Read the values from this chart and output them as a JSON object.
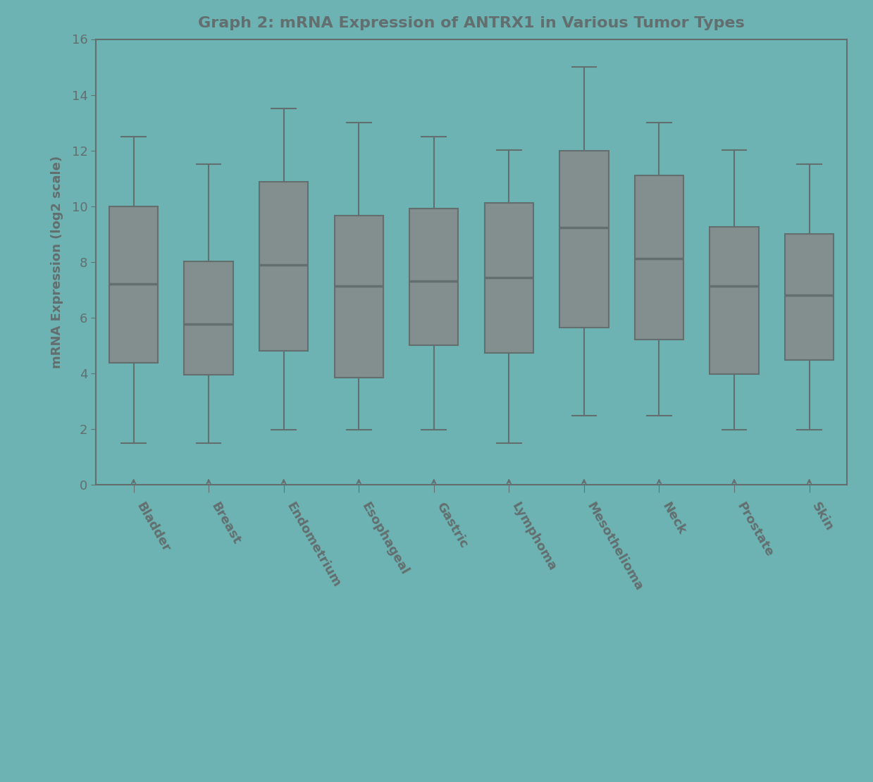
{
  "title": "Graph 2: mRNA Expression of ANTRX1 in Various Tumor Types",
  "ylabel": "mRNA Expression (log2 scale)",
  "background_color": "#6db3b3",
  "plot_bg_color": "#6db3b3",
  "box_facecolor": "#838f8f",
  "box_edgecolor": "#636f6f",
  "median_color": "#636f6f",
  "whisker_color": "#636f6f",
  "cap_color": "#636f6f",
  "flier_color": "#636f6f",
  "axis_color": "#636f6f",
  "categories": [
    "Bladder",
    "Breast",
    "Endometrium",
    "Esophageal",
    "Gastric",
    "Lymphoma",
    "Mesothelioma",
    "Neck",
    "Prostate",
    "Skin"
  ],
  "box_stats": {
    "Bladder": {
      "q1": 4.5,
      "median": 6.5,
      "q3": 9.5,
      "wl": 1.5,
      "wh": 12.5
    },
    "Breast": {
      "q1": 4.0,
      "median": 6.0,
      "q3": 8.5,
      "wl": 1.5,
      "wh": 11.5
    },
    "Endometrium": {
      "q1": 5.0,
      "median": 8.0,
      "q3": 11.5,
      "wl": 2.0,
      "wh": 13.5
    },
    "Esophageal": {
      "q1": 4.5,
      "median": 7.5,
      "q3": 10.5,
      "wl": 2.0,
      "wh": 13.0
    },
    "Gastric": {
      "q1": 4.5,
      "median": 7.0,
      "q3": 10.0,
      "wl": 2.0,
      "wh": 12.5
    },
    "Lymphoma": {
      "q1": 4.0,
      "median": 6.5,
      "q3": 10.0,
      "wl": 1.5,
      "wh": 12.0
    },
    "Mesothelioma": {
      "q1": 5.5,
      "median": 8.5,
      "q3": 12.5,
      "wl": 2.5,
      "wh": 15.0
    },
    "Neck": {
      "q1": 5.0,
      "median": 7.5,
      "q3": 11.0,
      "wl": 2.5,
      "wh": 13.0
    },
    "Prostate": {
      "q1": 4.5,
      "median": 6.5,
      "q3": 9.5,
      "wl": 2.0,
      "wh": 12.0
    },
    "Skin": {
      "q1": 4.5,
      "median": 7.0,
      "q3": 9.5,
      "wl": 2.0,
      "wh": 11.5
    }
  },
  "ylim": [
    0,
    16
  ],
  "yticks": [
    0,
    2,
    4,
    6,
    8,
    10,
    12,
    14,
    16
  ],
  "box_width": 0.65,
  "title_fontsize": 16,
  "label_fontsize": 13,
  "tick_fontsize": 13,
  "xtick_rotation": -60,
  "xtick_ha": "left",
  "figsize": [
    12.39,
    11.1
  ]
}
